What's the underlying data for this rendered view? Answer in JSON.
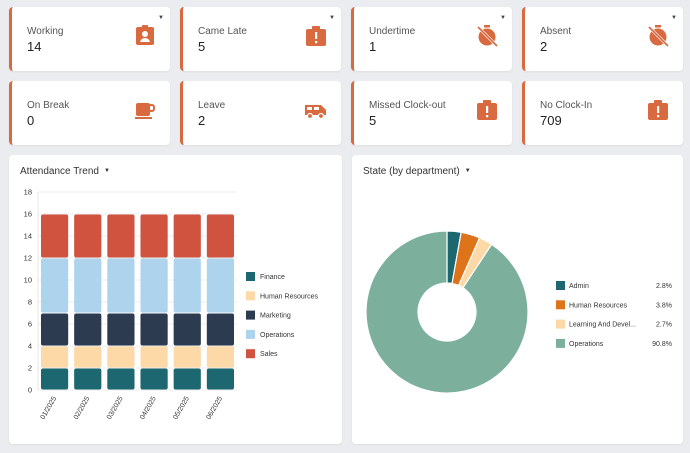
{
  "stats": [
    {
      "label": "Working",
      "value": "14",
      "icon": "badge-icon"
    },
    {
      "label": "Came Late",
      "value": "5",
      "icon": "alert-icon"
    },
    {
      "label": "Undertime",
      "value": "1",
      "icon": "timer-off-icon"
    },
    {
      "label": "Absent",
      "value": "2",
      "icon": "timer-off-icon"
    },
    {
      "label": "On Break",
      "value": "0",
      "icon": "coffee-icon"
    },
    {
      "label": "Leave",
      "value": "2",
      "icon": "van-icon"
    },
    {
      "label": "Missed Clock-out",
      "value": "5",
      "icon": "alert-icon"
    },
    {
      "label": "No Clock-In",
      "value": "709",
      "icon": "alert-icon"
    }
  ],
  "colors": {
    "accent": "#d9693f",
    "icon": "#d9693f"
  },
  "trend": {
    "title": "Attendance Trend"
  },
  "state": {
    "title": "State (by department)"
  },
  "chart_data": [
    {
      "type": "bar",
      "stacked": true,
      "title": "Attendance Trend",
      "categories": [
        "01/2025",
        "02/2025",
        "03/2025",
        "04/2025",
        "05/2025",
        "06/2025"
      ],
      "ylim": [
        0,
        18
      ],
      "yticks": [
        0,
        2,
        4,
        6,
        8,
        10,
        12,
        14,
        16,
        18
      ],
      "grid": true,
      "legend_position": "right",
      "series": [
        {
          "name": "Finance",
          "color": "#1d6870",
          "values": [
            2,
            2,
            2,
            2,
            2,
            2
          ]
        },
        {
          "name": "Human Resources",
          "color": "#fcd9a6",
          "values": [
            2,
            2,
            2,
            2,
            2,
            2
          ]
        },
        {
          "name": "Marketing",
          "color": "#2d3b50",
          "values": [
            3,
            3,
            3,
            3,
            3,
            3
          ]
        },
        {
          "name": "Operations",
          "color": "#aed3ec",
          "values": [
            5,
            5,
            5,
            5,
            5,
            5
          ]
        },
        {
          "name": "Sales",
          "color": "#d0533f",
          "values": [
            4,
            4,
            4,
            4,
            4,
            4
          ]
        }
      ]
    },
    {
      "type": "pie",
      "title": "State (by department)",
      "donut": true,
      "legend_position": "right",
      "slices": [
        {
          "name": "Admin",
          "value": 2.8,
          "label": "2.8%",
          "color": "#1d6870"
        },
        {
          "name": "Human Resources",
          "value": 3.8,
          "label": "3.8%",
          "color": "#df7319"
        },
        {
          "name": "Learning And Devel...",
          "value": 2.7,
          "label": "2.7%",
          "color": "#fcd9a6"
        },
        {
          "name": "Operations",
          "value": 90.8,
          "label": "90.8%",
          "color": "#7cb09c"
        }
      ]
    }
  ]
}
